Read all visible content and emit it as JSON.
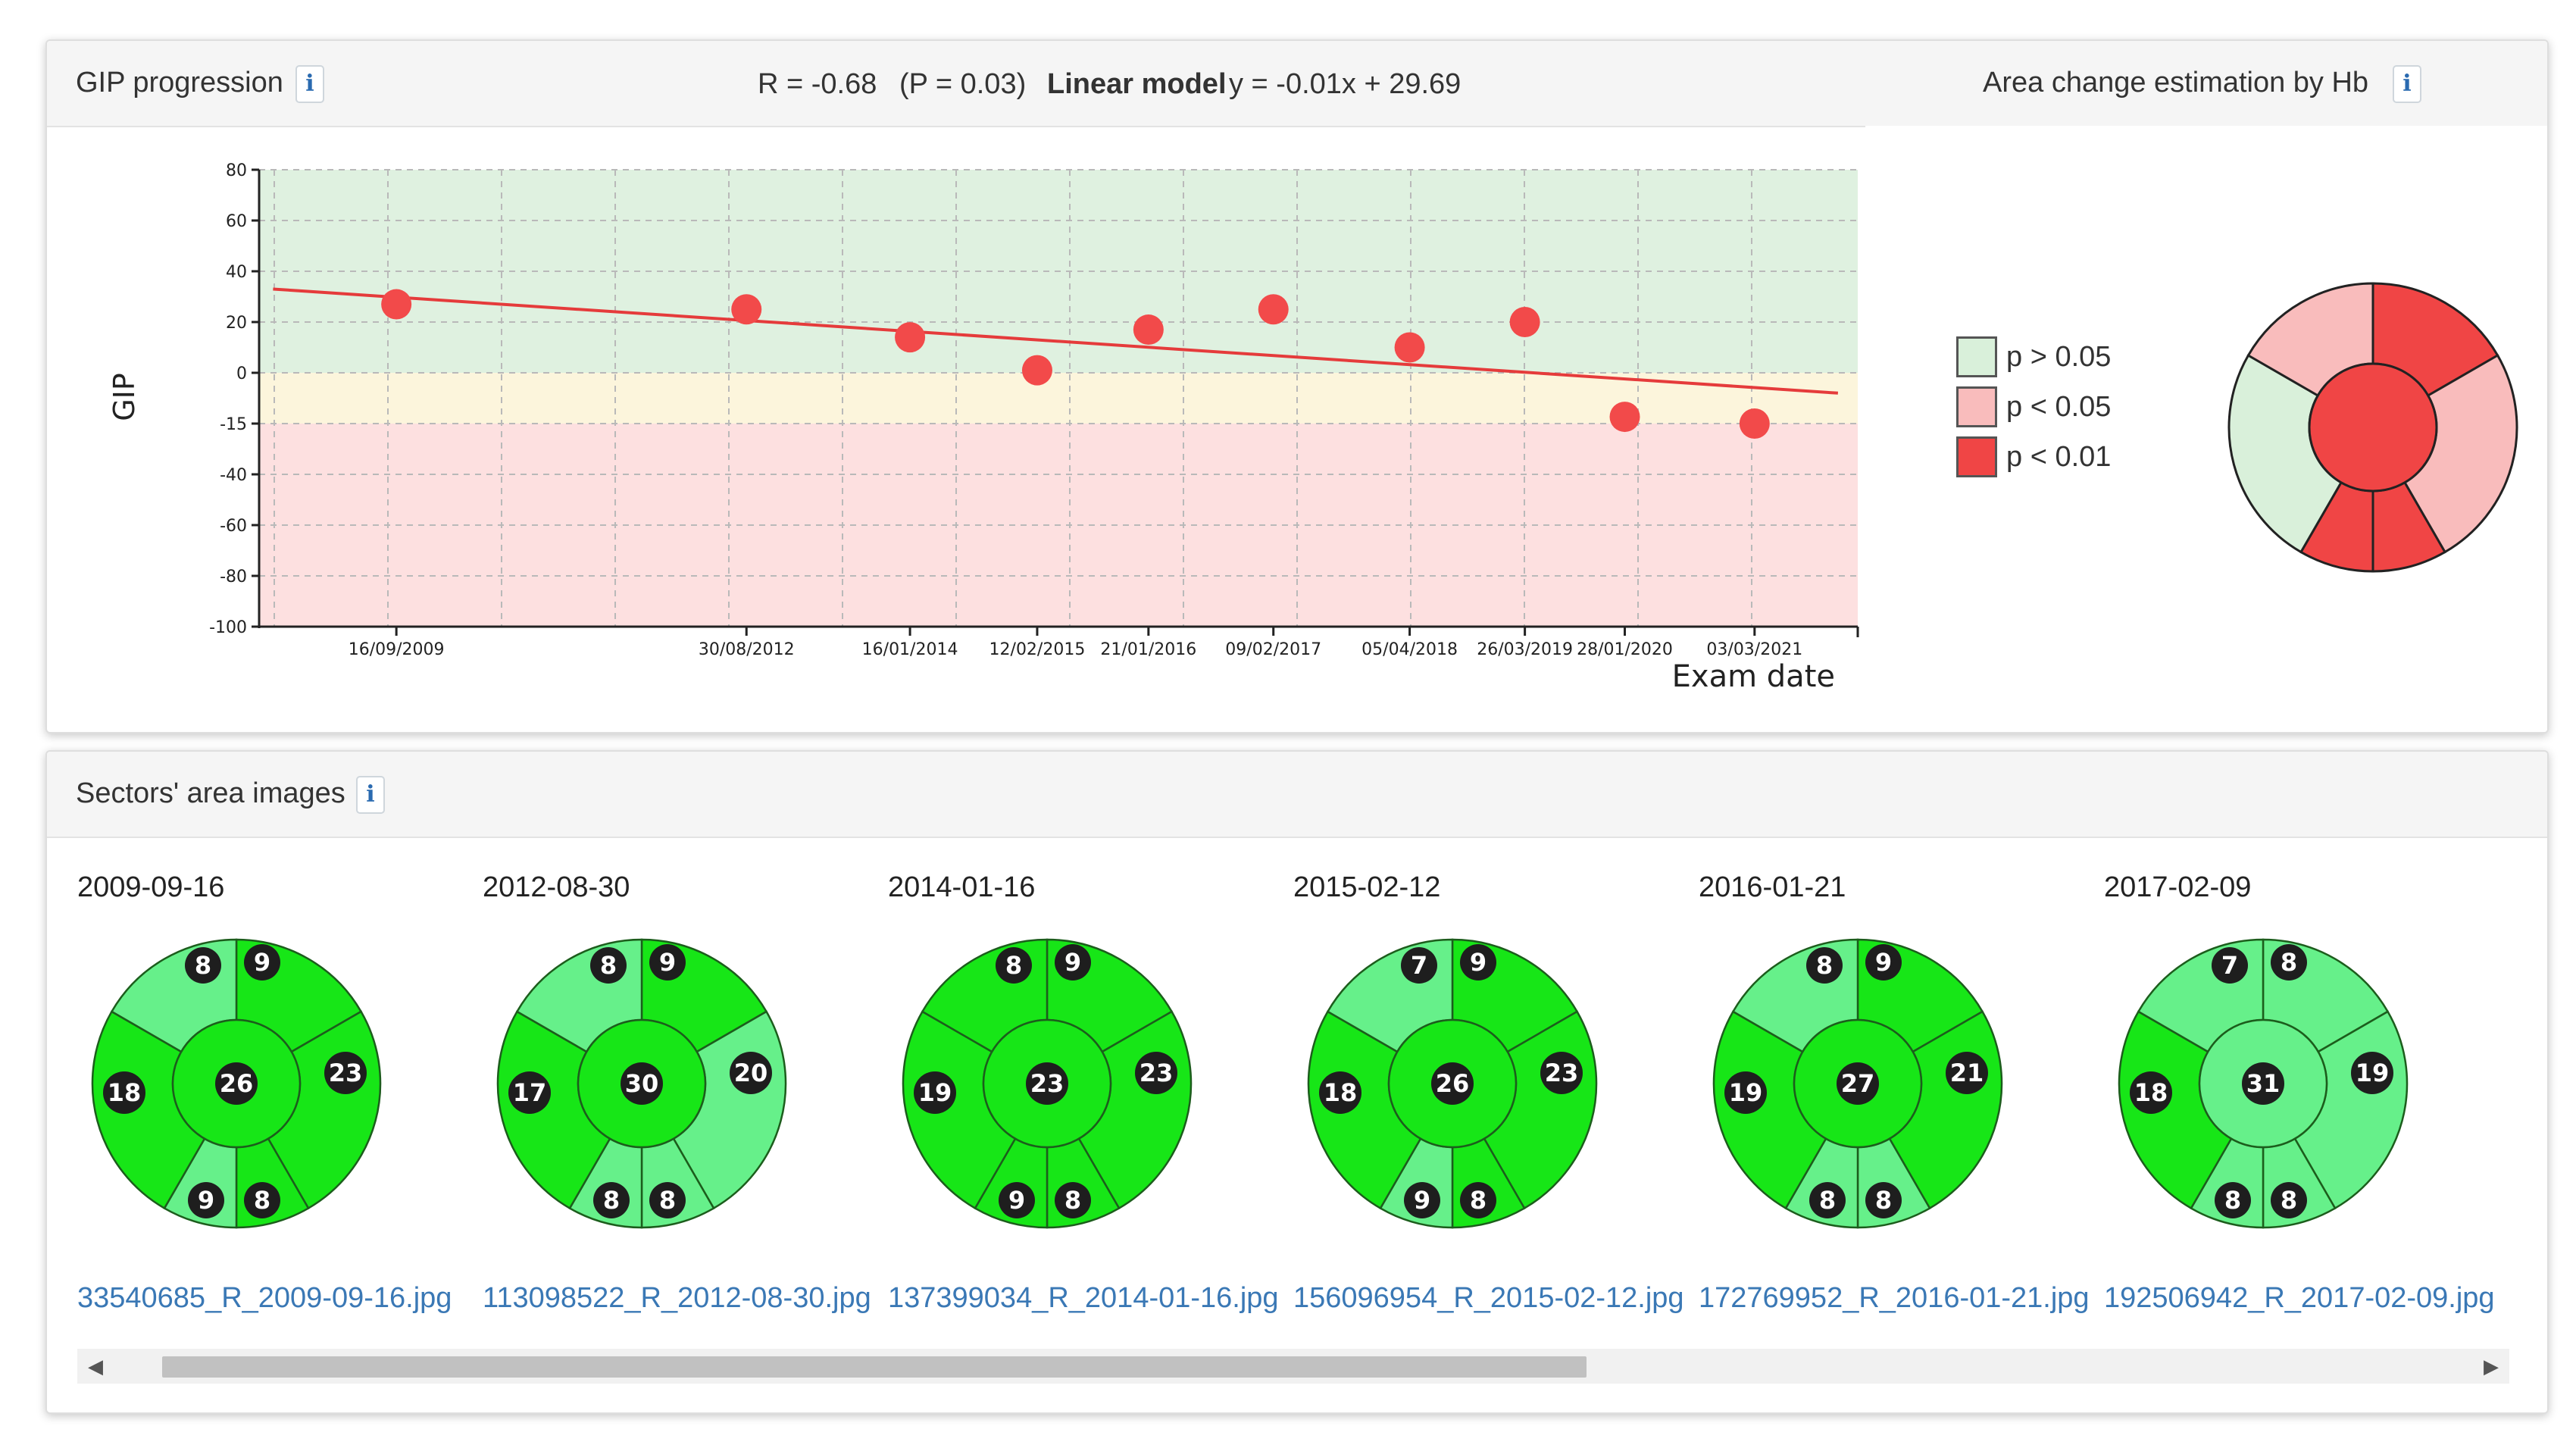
{
  "top_panel": {
    "title": "GIP progression",
    "info_glyph": "i",
    "stats": {
      "r_text": "R = -0.68",
      "p_text": "(P = 0.03)",
      "model_label": "Linear model",
      "model_equation": "y = -0.01x + 29.69"
    },
    "right_title": "Area change estimation by Hb"
  },
  "chart_data": {
    "type": "scatter",
    "ylabel": "GIP",
    "xlabel": "Exam date",
    "ylim": [
      -100,
      80
    ],
    "yticks": [
      80,
      60,
      40,
      20,
      0,
      -15,
      -40,
      -60,
      -80,
      -100
    ],
    "x_tick_labels": [
      "16/09/2009",
      "30/08/2012",
      "16/01/2014",
      "12/02/2015",
      "21/01/2016",
      "09/02/2017",
      "05/04/2018",
      "26/03/2019",
      "28/01/2020",
      "03/03/2021"
    ],
    "points": [
      {
        "x": "2009-09-16",
        "y": 27
      },
      {
        "x": "2012-08-30",
        "y": 25
      },
      {
        "x": "2014-01-16",
        "y": 14
      },
      {
        "x": "2015-02-12",
        "y": 1
      },
      {
        "x": "2016-01-21",
        "y": 17
      },
      {
        "x": "2017-02-09",
        "y": 25
      },
      {
        "x": "2018-04-05",
        "y": 10
      },
      {
        "x": "2019-03-26",
        "y": 20
      },
      {
        "x": "2020-01-28",
        "y": -13
      },
      {
        "x": "2021-03-03",
        "y": -15
      }
    ],
    "trend_line": {
      "x": [
        "2008-09-01",
        "2021-11-15"
      ],
      "y": [
        33,
        -6
      ]
    },
    "bands": [
      {
        "from": 0,
        "to": 80,
        "color": "#dff1e0"
      },
      {
        "from": -15,
        "to": 0,
        "color": "#fcf5dc"
      },
      {
        "from": -100,
        "to": -15,
        "color": "#fde0e0"
      }
    ],
    "point_color": "#f24a4a",
    "line_color": "#e53b3b",
    "grid": true
  },
  "legend": [
    {
      "label": "p > 0.05",
      "color": "#d9f0da"
    },
    {
      "label": "p < 0.05",
      "color": "#f9bcbc"
    },
    {
      "label": "p < 0.01",
      "color": "#f04545"
    }
  ],
  "hb_wheel": {
    "center_color": "#f04545",
    "ring_colors": [
      "#f04545",
      "#f9bcbc",
      "#f04545",
      "#f04545",
      "#d9f0da",
      "#f9bcbc"
    ]
  },
  "bottom_panel": {
    "title": "Sectors' area images",
    "info_glyph": "i"
  },
  "sector_colors": {
    "bright": "#17e617",
    "light": "#66f08a"
  },
  "images": [
    {
      "date": "2009-09-16",
      "filename": "33540685_R_2009-09-16.jpg",
      "center": "26",
      "tl": "8",
      "tr": "9",
      "l": "18",
      "r": "23",
      "bl": "9",
      "br": "8",
      "fills": {
        "center": "bright",
        "tl": "light",
        "tr": "bright",
        "l": "bright",
        "r": "bright",
        "bl": "light",
        "br": "bright"
      }
    },
    {
      "date": "2012-08-30",
      "filename": "113098522_R_2012-08-30.jpg",
      "center": "30",
      "tl": "8",
      "tr": "9",
      "l": "17",
      "r": "20",
      "bl": "8",
      "br": "8",
      "fills": {
        "center": "bright",
        "tl": "light",
        "tr": "bright",
        "l": "bright",
        "r": "light",
        "bl": "light",
        "br": "light"
      }
    },
    {
      "date": "2014-01-16",
      "filename": "137399034_R_2014-01-16.jpg",
      "center": "23",
      "tl": "8",
      "tr": "9",
      "l": "19",
      "r": "23",
      "bl": "9",
      "br": "8",
      "fills": {
        "center": "bright",
        "tl": "bright",
        "tr": "bright",
        "l": "bright",
        "r": "bright",
        "bl": "bright",
        "br": "bright"
      }
    },
    {
      "date": "2015-02-12",
      "filename": "156096954_R_2015-02-12.jpg",
      "center": "26",
      "tl": "7",
      "tr": "9",
      "l": "18",
      "r": "23",
      "bl": "9",
      "br": "8",
      "fills": {
        "center": "bright",
        "tl": "light",
        "tr": "bright",
        "l": "bright",
        "r": "bright",
        "bl": "light",
        "br": "bright"
      }
    },
    {
      "date": "2016-01-21",
      "filename": "172769952_R_2016-01-21.jpg",
      "center": "27",
      "tl": "8",
      "tr": "9",
      "l": "19",
      "r": "21",
      "bl": "8",
      "br": "8",
      "fills": {
        "center": "bright",
        "tl": "light",
        "tr": "bright",
        "l": "bright",
        "r": "bright",
        "bl": "light",
        "br": "light"
      }
    },
    {
      "date": "2017-02-09",
      "filename": "192506942_R_2017-02-09.jpg",
      "center": "31",
      "tl": "7",
      "tr": "8",
      "l": "18",
      "r": "19",
      "bl": "8",
      "br": "8",
      "fills": {
        "center": "light",
        "tl": "light",
        "tr": "light",
        "l": "bright",
        "r": "light",
        "bl": "light",
        "br": "light"
      }
    }
  ],
  "scrollbar": {
    "left_arrow": "◀",
    "right_arrow": "▶"
  }
}
